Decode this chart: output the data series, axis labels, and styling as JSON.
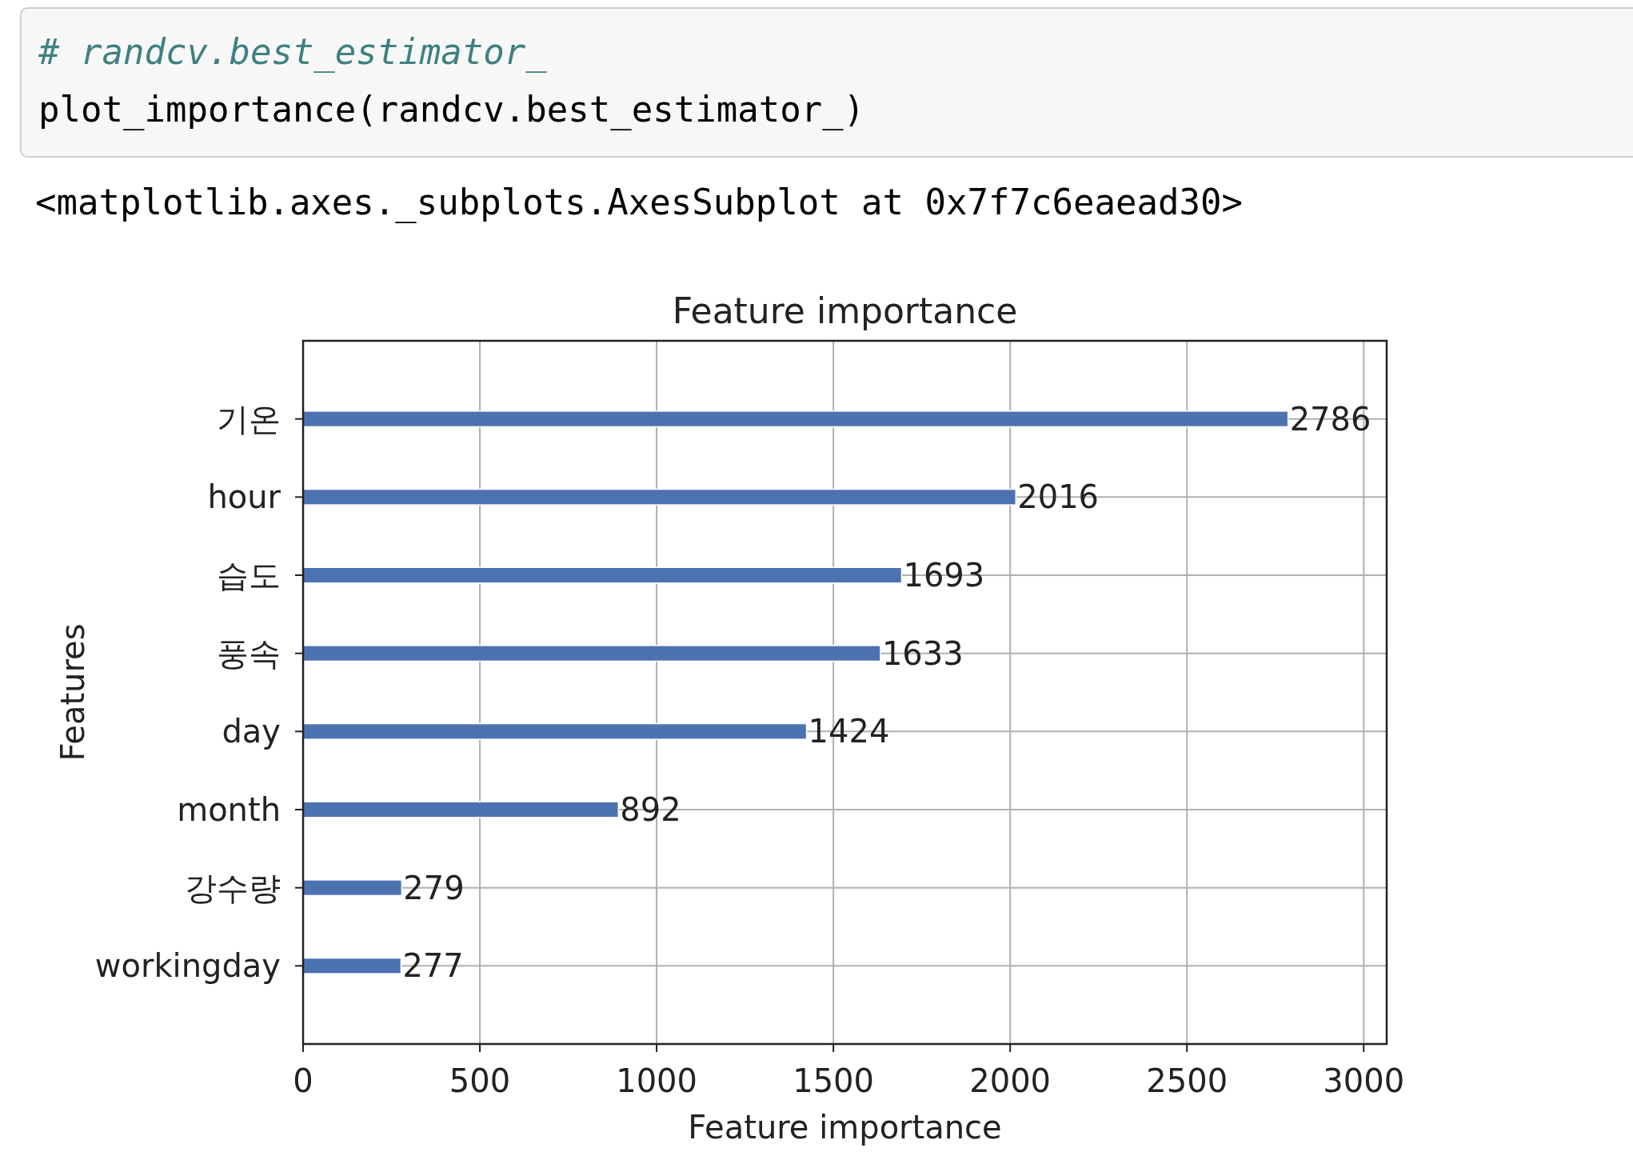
{
  "chart_data": {
    "type": "bar",
    "orientation": "horizontal",
    "title": "Feature importance",
    "xlabel": "Feature importance",
    "ylabel": "Features",
    "categories": [
      "기온",
      "hour",
      "습도",
      "풍속",
      "day",
      "month",
      "강수량",
      "workingday"
    ],
    "values": [
      2786,
      2016,
      1693,
      1633,
      1424,
      892,
      279,
      277
    ],
    "color": "#4c72b0",
    "xlim": [
      0,
      3065
    ],
    "xticks": [
      0,
      500,
      1000,
      1500,
      2000,
      2500,
      3000
    ],
    "grid": true,
    "data_labels": true,
    "annotations": [
      "# randcv.best_estimator_",
      "plot_importance(randcv.best_estimator_)",
      "<matplotlib.axes._subplots.AxesSubplot at 0x7f7c6eaead30>"
    ]
  }
}
